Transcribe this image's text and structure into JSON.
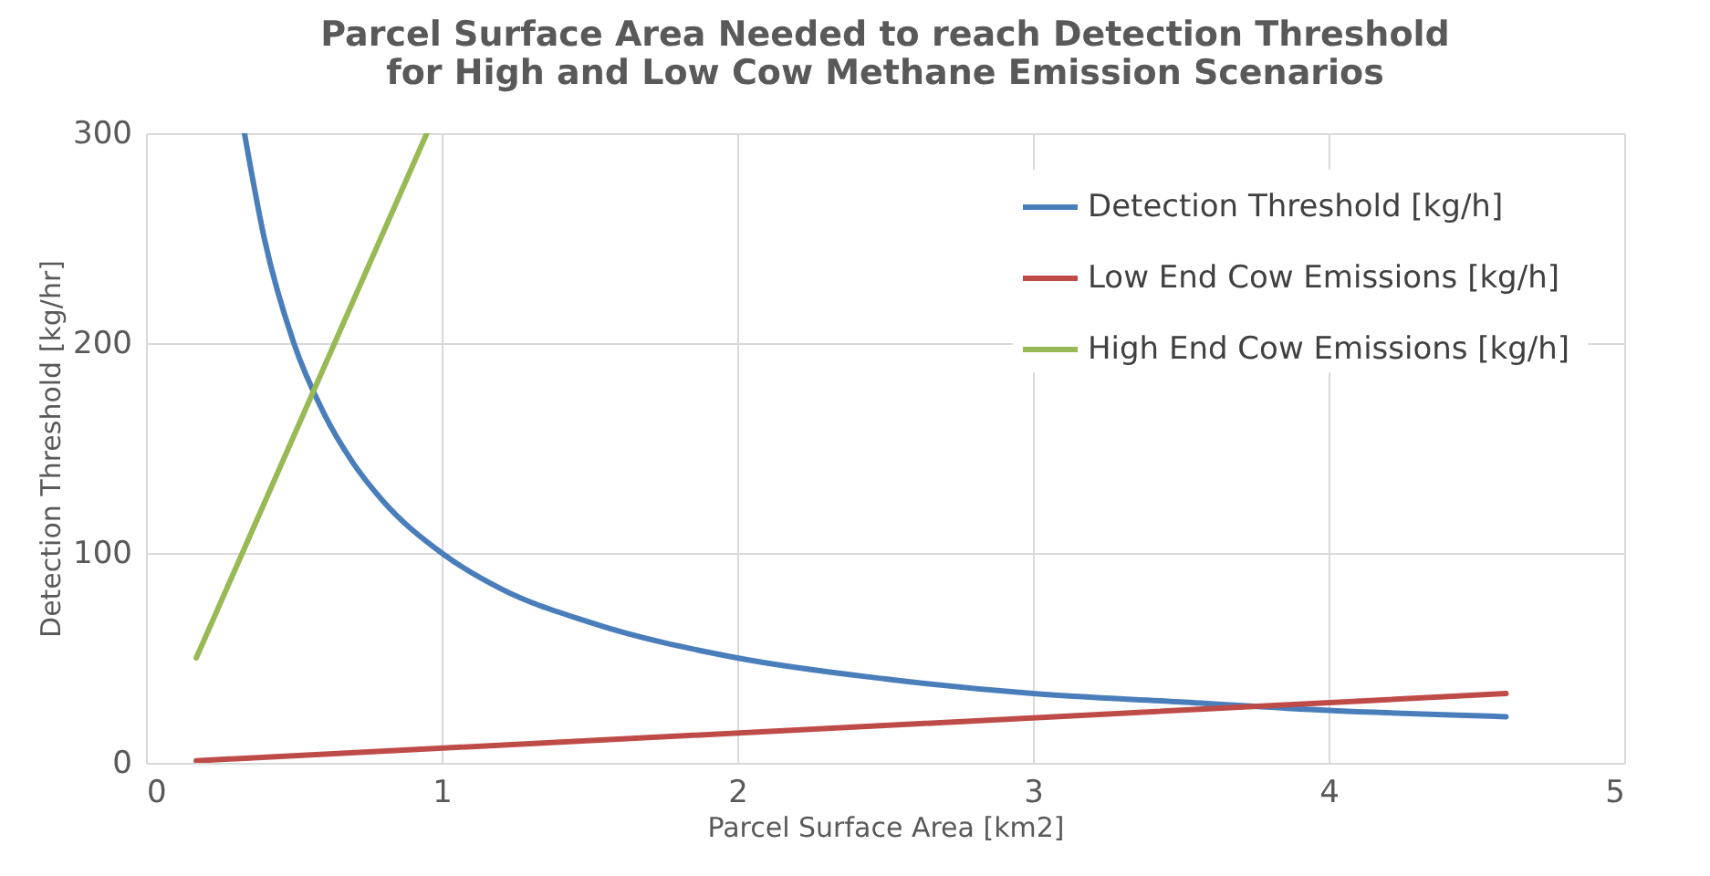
{
  "chart_data": {
    "type": "line",
    "title": "Parcel Surface Area Needed to reach Detection Threshold for High and Low Cow Methane Emission Scenarios",
    "xlabel": "Parcel Surface Area [km2]",
    "ylabel": "Detection Threshold [kg/hr]",
    "series": [
      {
        "name": "Detection Threshold [kg/h]",
        "color": "#4a7ebb",
        "x": [
          0.333,
          0.4,
          0.5,
          0.6,
          0.7,
          0.8,
          1,
          1.2,
          1.5,
          2,
          2.5,
          3,
          3.5,
          4,
          4.6
        ],
        "values": [
          300,
          250,
          200,
          167,
          143,
          125,
          100,
          83,
          67,
          50,
          40,
          33,
          29,
          25,
          22
        ]
      },
      {
        "name": "Low End Cow Emissions  [kg/h]",
        "color": "#be4b48",
        "x": [
          0.17,
          4.6
        ],
        "values": [
          1,
          33
        ]
      },
      {
        "name": "High End Cow Emissions  [kg/h]",
        "color": "#98b954",
        "x": [
          0.17,
          0.95
        ],
        "values": [
          50,
          300
        ]
      }
    ],
    "xlim": [
      0,
      5
    ],
    "ylim": [
      0,
      300
    ],
    "xticks": [
      0,
      1,
      2,
      3,
      4,
      5
    ],
    "yticks": [
      0,
      100,
      200,
      300
    ],
    "grid": true,
    "legend": "top right",
    "line_style": "solid"
  }
}
